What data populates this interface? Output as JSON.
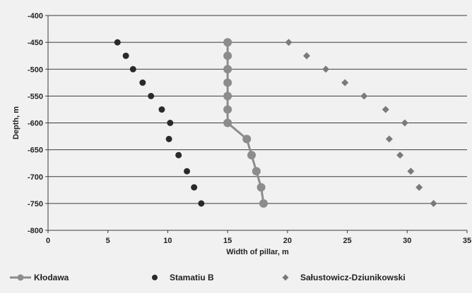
{
  "chart_data": {
    "type": "scatter",
    "xlabel": "Width of pillar, m",
    "ylabel": "Depth, m",
    "xlim": [
      0,
      35
    ],
    "ylim": [
      -800,
      -400
    ],
    "xticks": [
      0,
      5,
      10,
      15,
      20,
      25,
      30,
      35
    ],
    "yticks": [
      -400,
      -450,
      -500,
      -550,
      -600,
      -650,
      -700,
      -750,
      -800
    ],
    "grid": "horizontal",
    "legend_position": "bottom",
    "series": [
      {
        "name": "Kłodawa",
        "marker": "circle",
        "line": true,
        "color": "#8c8c8c",
        "points": [
          [
            15.0,
            -450
          ],
          [
            15.0,
            -475
          ],
          [
            15.0,
            -500
          ],
          [
            15.0,
            -525
          ],
          [
            15.0,
            -550
          ],
          [
            15.0,
            -575
          ],
          [
            15.0,
            -600
          ],
          [
            16.6,
            -630
          ],
          [
            17.0,
            -660
          ],
          [
            17.4,
            -690
          ],
          [
            17.8,
            -720
          ],
          [
            18.0,
            -750
          ]
        ]
      },
      {
        "name": "Stamatiu B",
        "marker": "circle",
        "line": false,
        "color": "#2a2a2a",
        "points": [
          [
            5.8,
            -450
          ],
          [
            6.5,
            -475
          ],
          [
            7.1,
            -500
          ],
          [
            7.9,
            -525
          ],
          [
            8.6,
            -550
          ],
          [
            9.5,
            -575
          ],
          [
            10.2,
            -600
          ],
          [
            10.1,
            -630
          ],
          [
            10.9,
            -660
          ],
          [
            11.6,
            -690
          ],
          [
            12.2,
            -720
          ],
          [
            12.8,
            -750
          ]
        ]
      },
      {
        "name": "Sałustowicz-Dziunikowski",
        "marker": "diamond",
        "line": false,
        "color": "#7a7a7a",
        "points": [
          [
            20.1,
            -450
          ],
          [
            21.6,
            -475
          ],
          [
            23.2,
            -500
          ],
          [
            24.8,
            -525
          ],
          [
            26.4,
            -550
          ],
          [
            28.2,
            -575
          ],
          [
            29.8,
            -600
          ],
          [
            28.5,
            -630
          ],
          [
            29.4,
            -660
          ],
          [
            30.3,
            -690
          ],
          [
            31.0,
            -720
          ],
          [
            32.2,
            -750
          ]
        ]
      }
    ]
  }
}
